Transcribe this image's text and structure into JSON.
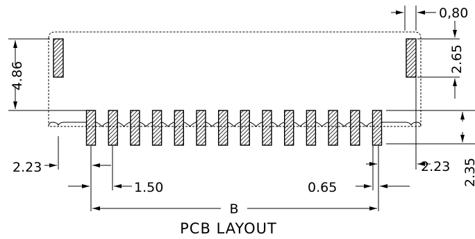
{
  "dimensions": {
    "top_right_pitch": "0,80",
    "tab_offset": "2.65",
    "overall_height": "4.86",
    "edge_left": "2.23",
    "edge_right": "2.23",
    "pad_pitch": "1.50",
    "pad_width": "0.65",
    "pad_length": "2.35",
    "span": "B"
  },
  "title": "PCB LAYOUT",
  "pad_count": 14
}
